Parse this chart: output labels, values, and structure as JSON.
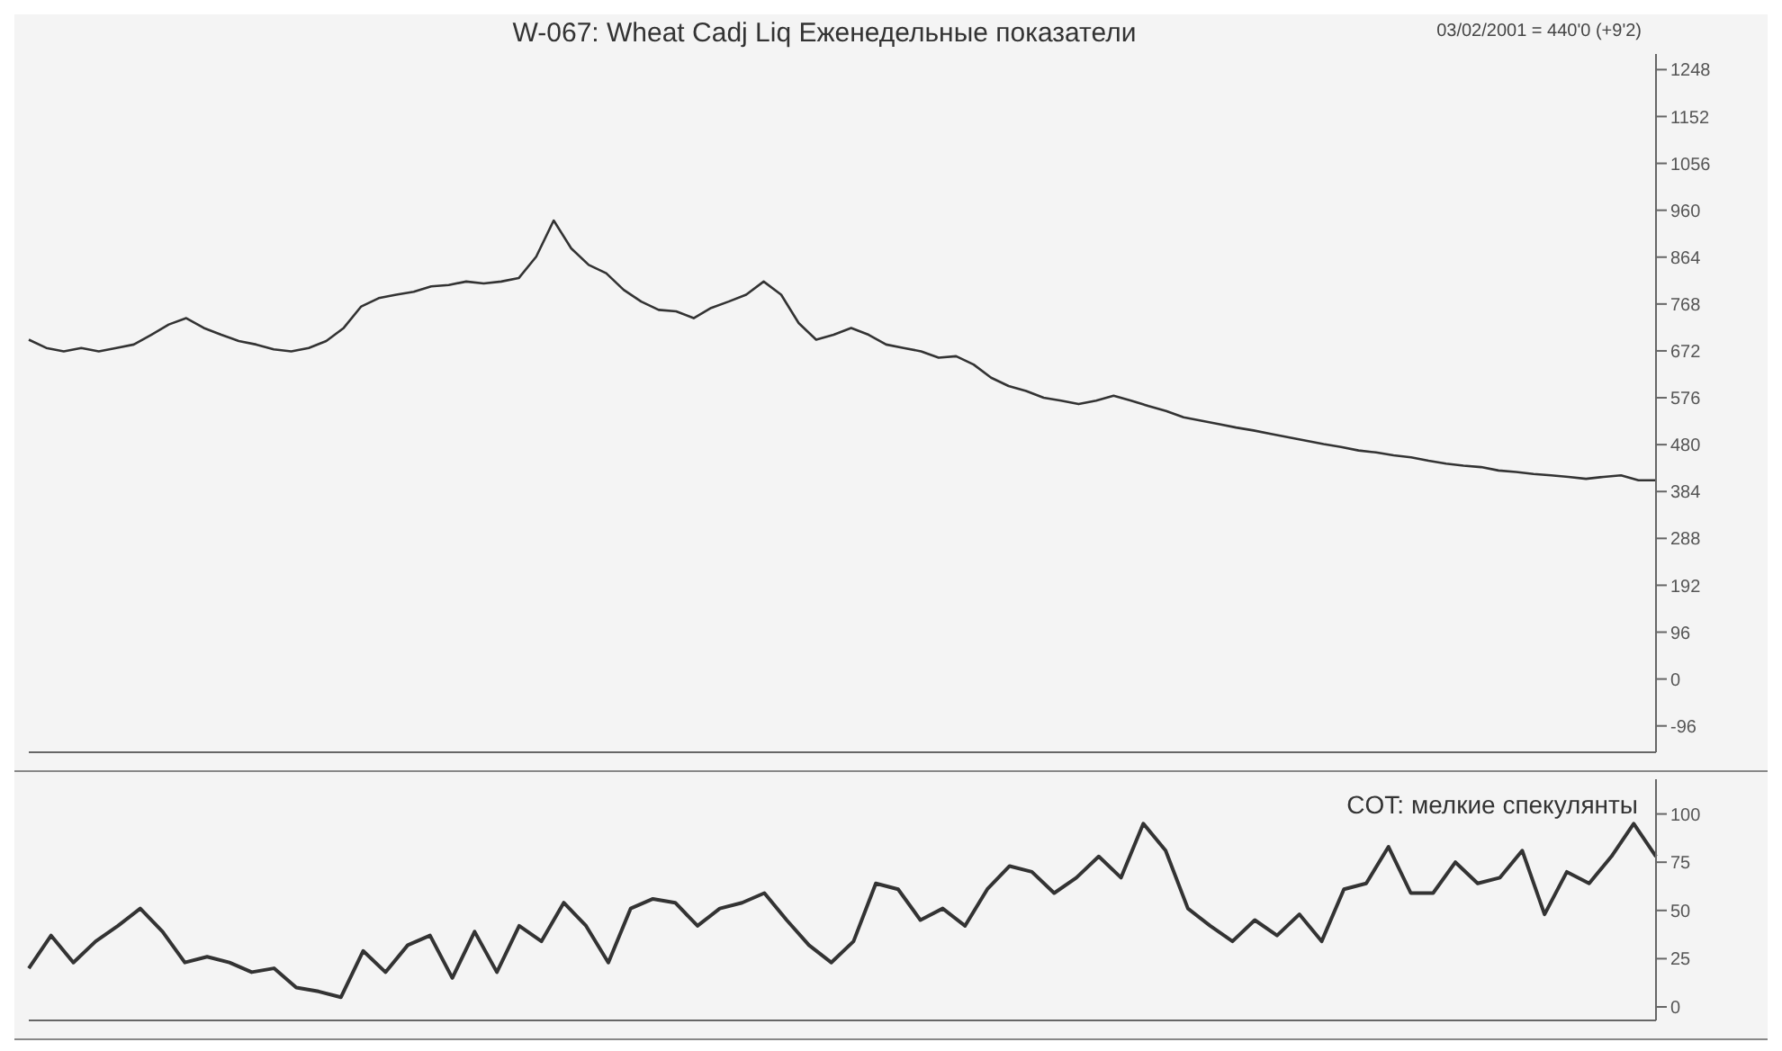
{
  "chart_data": [
    {
      "type": "line",
      "title": "W-067: Wheat Cadj Liq Еженедельные показатели",
      "annotations": [
        "03/02/2001 = 440'0 (+9'2)"
      ],
      "color": "#333333",
      "categories": [
        null,
        null,
        null,
        null,
        null,
        null,
        null,
        null,
        null,
        null,
        null,
        null,
        null,
        null,
        null,
        null,
        null,
        null,
        null,
        null,
        null,
        null,
        null,
        null,
        null,
        null,
        null,
        null,
        null,
        null,
        null,
        null,
        null,
        null,
        null,
        null,
        null,
        null,
        null,
        null,
        null,
        null,
        null,
        null,
        null,
        null,
        null,
        null,
        null,
        null,
        null,
        null,
        null,
        null,
        null,
        null,
        null,
        null,
        null,
        null,
        null,
        null,
        null,
        null,
        null,
        null,
        null,
        null,
        null,
        null,
        null,
        null,
        null,
        null,
        null,
        null,
        null,
        null,
        null,
        null,
        null,
        null,
        null,
        null,
        null,
        null,
        null,
        null,
        null,
        null,
        null,
        null,
        null,
        null
      ],
      "values": [
        695,
        678,
        671,
        678,
        671,
        678,
        685,
        705,
        726,
        739,
        719,
        705,
        692,
        685,
        675,
        671,
        678,
        692,
        719,
        763,
        780,
        787,
        793,
        804,
        807,
        814,
        810,
        814,
        821,
        865,
        939,
        882,
        848,
        831,
        797,
        773,
        756,
        753,
        739,
        760,
        773,
        787,
        814,
        787,
        729,
        695,
        705,
        719,
        705,
        685,
        678,
        671,
        658,
        661,
        644,
        617,
        600,
        590,
        576,
        570,
        563,
        570,
        580,
        570,
        559,
        549,
        536,
        529,
        522,
        515,
        509,
        502,
        495,
        488,
        481,
        475,
        468,
        464,
        458,
        454,
        447,
        441,
        437,
        434,
        427,
        424,
        420,
        417,
        414,
        410,
        414,
        417,
        407,
        407
      ],
      "ylim": [
        -150,
        1280
      ],
      "yticks": [
        1248,
        1152,
        1056,
        960,
        864,
        768,
        672,
        576,
        480,
        384,
        288,
        192,
        96,
        0,
        -96
      ]
    },
    {
      "type": "line",
      "categories": [
        null,
        null,
        null,
        null,
        null,
        null,
        null,
        null,
        null,
        null,
        null,
        null,
        null,
        null,
        null,
        null,
        null,
        null,
        null,
        null,
        null,
        null,
        null,
        null,
        null,
        null,
        null,
        null,
        null,
        null,
        null,
        null,
        null,
        null,
        null,
        null,
        null,
        null,
        null,
        null,
        null,
        null,
        null,
        null,
        null,
        null,
        null,
        null,
        null,
        null,
        null,
        null,
        null,
        null,
        null,
        null,
        null,
        null,
        null,
        null,
        null,
        null,
        null,
        null,
        null,
        null,
        null,
        null,
        null,
        null,
        null,
        null,
        null,
        null
      ],
      "series": [
        {
          "name": "COT: мелкие спекулянты",
          "color": "#333333",
          "values": [
            20,
            37,
            23,
            34,
            42,
            51,
            39,
            23,
            26,
            23,
            18,
            20,
            10,
            8,
            5,
            29,
            18,
            32,
            37,
            15,
            39,
            18,
            42,
            34,
            54,
            42,
            23,
            51,
            56,
            54,
            42,
            51,
            54,
            59,
            45,
            32,
            23,
            34,
            64,
            61,
            45,
            51,
            42,
            61,
            73,
            70,
            59,
            67,
            78,
            67,
            95,
            81,
            51,
            42,
            34,
            45,
            37,
            48,
            34,
            61,
            64,
            83,
            59,
            59,
            75,
            64,
            67,
            81,
            48,
            70,
            64,
            78,
            95,
            78
          ]
        }
      ],
      "ylim": [
        -7,
        118
      ],
      "yticks": [
        0,
        25,
        50,
        75,
        100
      ]
    }
  ]
}
